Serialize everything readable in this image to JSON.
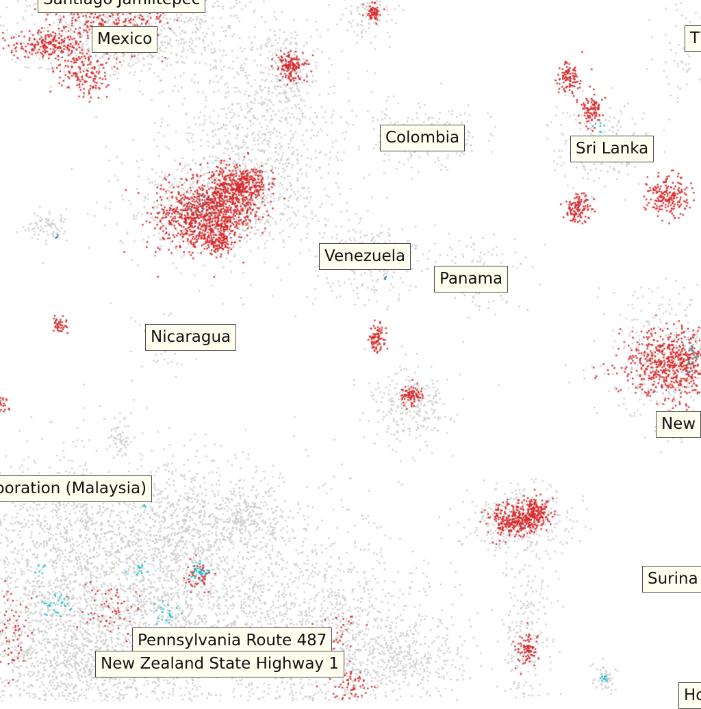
{
  "labels": {
    "santiago_jamiltepec": "Santiago Jamiltepec",
    "mexico": "Mexico",
    "t_partial": "T",
    "colombia": "Colombia",
    "sri_lanka": "Sri Lanka",
    "venezuela": "Venezuela",
    "panama": "Panama",
    "nicaragua": "Nicaragua",
    "new_partial": "New",
    "malaysia_partial": "poration (Malaysia)",
    "surinam_partial": "Surina",
    "pa_route_487": "Pennsylvania Route 487",
    "nz_sh1": "New Zealand State Highway 1",
    "ho_partial": "Ho"
  },
  "colors": {
    "background": "#ffffff",
    "point_gray": "#cccccc",
    "point_red": "#d62728",
    "point_cyan": "#17becf",
    "point_blue": "#1f77b4",
    "label_background": "#fffff0",
    "label_border": "#4a4a4a"
  }
}
